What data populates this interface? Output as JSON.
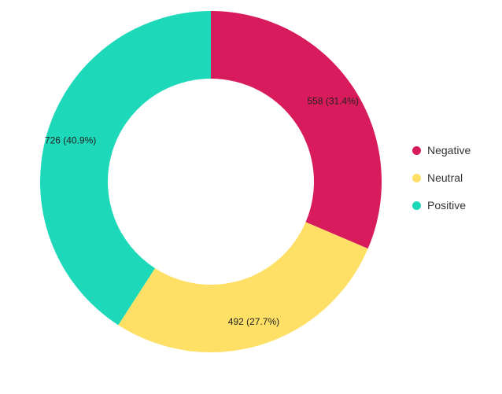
{
  "chart_data": {
    "type": "pie",
    "style": "donut",
    "series": [
      {
        "name": "Negative",
        "value": 558,
        "percent": "31.4%",
        "label": "558 (31.4%)",
        "color": "#D81B5C"
      },
      {
        "name": "Neutral",
        "value": 492,
        "percent": "27.7%",
        "label": "492 (27.7%)",
        "color": "#FFE066"
      },
      {
        "name": "Positive",
        "value": 726,
        "percent": "40.9%",
        "label": "726 (40.9%)",
        "color": "#1DD9BA"
      }
    ],
    "legend": {
      "position": "right"
    }
  }
}
